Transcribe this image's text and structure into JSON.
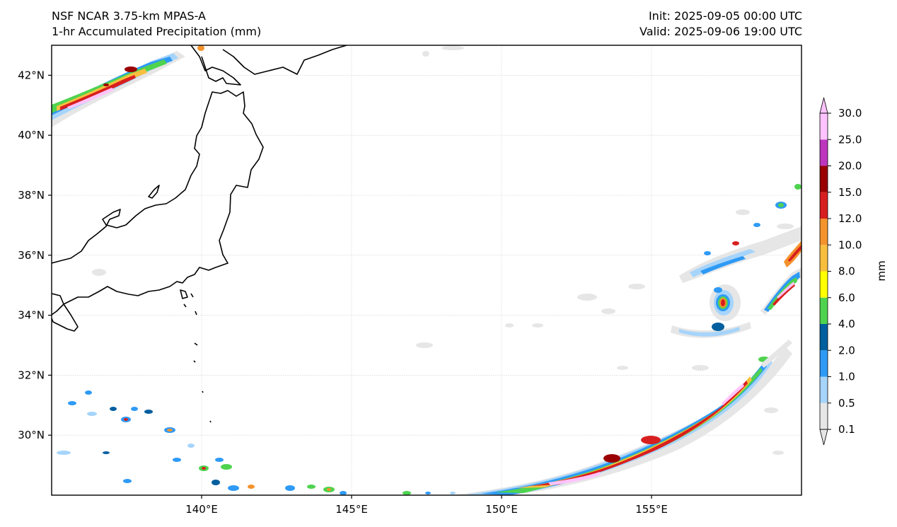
{
  "header": {
    "model": "NSF NCAR 3.75-km MPAS-A",
    "field": "1-hr Accumulated Precipitation (mm)",
    "init": "Init: 2025-09-05 00:00 UTC",
    "valid": "Valid: 2025-09-06 19:00 UTC"
  },
  "map": {
    "lon_range": [
      135.0,
      160.0
    ],
    "lat_range": [
      28.0,
      43.0
    ],
    "lat_ticks": [
      {
        "value": 42,
        "label": "42°N"
      },
      {
        "value": 40,
        "label": "40°N"
      },
      {
        "value": 38,
        "label": "38°N"
      },
      {
        "value": 36,
        "label": "36°N"
      },
      {
        "value": 34,
        "label": "34°N"
      },
      {
        "value": 32,
        "label": "32°N"
      },
      {
        "value": 30,
        "label": "30°N"
      }
    ],
    "lon_ticks": [
      {
        "value": 140,
        "label": "140°E"
      },
      {
        "value": 145,
        "label": "145°E"
      },
      {
        "value": 150,
        "label": "150°E"
      },
      {
        "value": 155,
        "label": "155°E"
      }
    ],
    "gridlines": true
  },
  "colorbar": {
    "unit_label": "mm",
    "levels": [
      "0.1",
      "0.5",
      "1.0",
      "2.0",
      "4.0",
      "6.0",
      "8.0",
      "10.0",
      "12.0",
      "15.0",
      "20.0",
      "25.0",
      "30.0"
    ],
    "colors": [
      "#e6e6e6",
      "#a6d4fb",
      "#2e9af5",
      "#005f9e",
      "#4fd34f",
      "#ffff00",
      "#f8bf3e",
      "#f4922c",
      "#d81f1f",
      "#9a0000",
      "#bd35bd",
      "#ffc3ff"
    ],
    "extend": "both"
  },
  "precip_features": [
    {
      "name": "northwest band near Hokkaido",
      "max_level": "30.0"
    },
    {
      "name": "typhoon spiral east of Japan near 157E 34N",
      "max_level": "20.0"
    },
    {
      "name": "southeast frontal arc 149E-159E",
      "max_level": "30.0"
    },
    {
      "name": "scattered showers south of 32N",
      "max_level": "20.0"
    }
  ]
}
